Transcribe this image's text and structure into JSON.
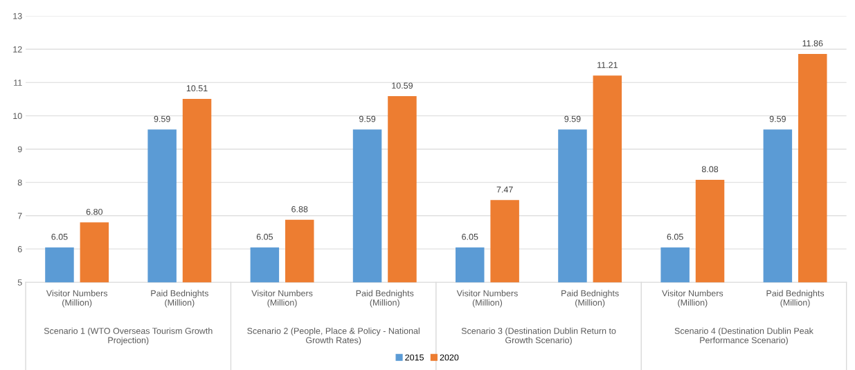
{
  "chart_data": {
    "type": "bar",
    "categories": [
      "Visitor Numbers\n(Million)",
      "Paid Bednights\n(Million)",
      "Visitor Numbers\n(Million)",
      "Paid Bednights\n(Million)",
      "Visitor Numbers\n(Million)",
      "Paid Bednights\n(Million)",
      "Visitor Numbers\n(Million)",
      "Paid Bednights\n(Million)"
    ],
    "series": [
      {
        "name": "2015",
        "color": "#5b9bd5",
        "values": [
          6.05,
          9.59,
          6.05,
          9.59,
          6.05,
          9.59,
          6.05,
          9.59
        ],
        "value_labels": [
          "6.05",
          "9.59",
          "6.05",
          "9.59",
          "6.05",
          "9.59",
          "6.05",
          "9.59"
        ]
      },
      {
        "name": "2020",
        "color": "#ed7d31",
        "values": [
          6.8,
          10.51,
          6.88,
          10.59,
          7.47,
          11.21,
          8.08,
          11.86
        ],
        "value_labels": [
          "6.80",
          "10.51",
          "6.88",
          "10.59",
          "7.47",
          "11.21",
          "8.08",
          "11.86"
        ]
      }
    ],
    "annotations": [
      "Scenario 1 (WTO Overseas Tourism Growth\nProjection)",
      "Scenario 2 (People, Place & Policy - National\nGrowth Rates)",
      "Scenario 3 (Destination Dublin Return to\nGrowth Scenario)",
      "Scenario 4 (Destination Dublin Peak\nPerformance Scenario)"
    ],
    "ylim": [
      5,
      13
    ],
    "yticks": [
      5,
      6,
      7,
      8,
      9,
      10,
      11,
      12,
      13
    ],
    "grid": "y",
    "legend": "bottom"
  }
}
